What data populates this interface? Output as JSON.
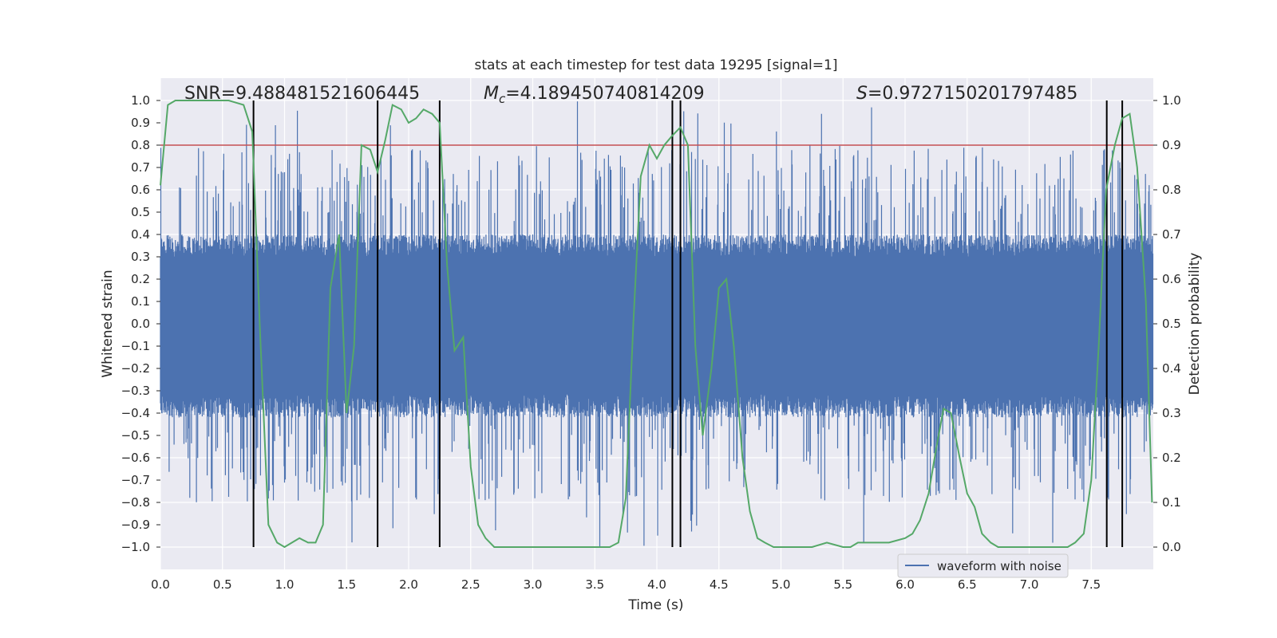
{
  "chart_data": {
    "type": "line",
    "title": "stats at each timestep for test data 19295 [signal=1]",
    "xlabel": "Time (s)",
    "ylabel": "Whitened strain",
    "y2label": "Detection probability",
    "xlim": [
      0.0,
      8.0
    ],
    "ylim": [
      -1.1,
      1.1
    ],
    "y2lim": [
      -0.05,
      1.05
    ],
    "xticks": [
      "0.0",
      "0.5",
      "1.0",
      "1.5",
      "2.0",
      "2.5",
      "3.0",
      "3.5",
      "4.0",
      "4.5",
      "5.0",
      "5.5",
      "6.0",
      "6.5",
      "7.0",
      "7.5"
    ],
    "yticks": [
      "1.0",
      "0.9",
      "0.8",
      "0.7",
      "0.6",
      "0.5",
      "0.4",
      "0.3",
      "0.2",
      "0.1",
      "0.0",
      "−0.1",
      "−0.2",
      "−0.3",
      "−0.4",
      "−0.5",
      "−0.6",
      "−0.7",
      "−0.8",
      "−0.9",
      "−1.0"
    ],
    "y2ticks": [
      "1.0",
      "0.9",
      "0.8",
      "0.7",
      "0.6",
      "0.5",
      "0.4",
      "0.3",
      "0.2",
      "0.1",
      "0.0"
    ],
    "annotations": {
      "snr": "SNR=9.488481521606445",
      "mc_symbol": "M",
      "mc_sub": "c",
      "mc_value": "=4.189450740814209",
      "s_symbol": "S",
      "s_value": "=0.9727150201797485"
    },
    "threshold": {
      "value": 0.8,
      "color": "#c44e52"
    },
    "event_lines": [
      0.75,
      1.75,
      2.25,
      4.125,
      4.19,
      7.625,
      7.75
    ],
    "series": [
      {
        "name": "waveform with noise",
        "color": "#4c72b0",
        "description": "noisy whitened strain, mostly within ±0.4, spikes to about ±1.0",
        "envelope": [
          0.4,
          0.42
        ]
      },
      {
        "name": "detection probability",
        "color": "#55a868",
        "axis": "right",
        "x": [
          0.0,
          0.06,
          0.12,
          0.25,
          0.4,
          0.55,
          0.67,
          0.74,
          0.8,
          0.87,
          0.94,
          1.0,
          1.06,
          1.12,
          1.19,
          1.25,
          1.31,
          1.37,
          1.44,
          1.5,
          1.56,
          1.62,
          1.69,
          1.75,
          1.81,
          1.87,
          1.94,
          2.0,
          2.06,
          2.12,
          2.19,
          2.25,
          2.31,
          2.37,
          2.44,
          2.5,
          2.56,
          2.62,
          2.69,
          2.75,
          2.81,
          2.87,
          3.0,
          3.12,
          3.25,
          3.4,
          3.56,
          3.62,
          3.69,
          3.75,
          3.81,
          3.87,
          3.94,
          4.0,
          4.06,
          4.12,
          4.19,
          4.25,
          4.31,
          4.37,
          4.44,
          4.5,
          4.56,
          4.62,
          4.69,
          4.75,
          4.81,
          4.87,
          4.94,
          5.0,
          5.12,
          5.25,
          5.37,
          5.5,
          5.56,
          5.62,
          5.75,
          5.87,
          6.0,
          6.06,
          6.12,
          6.19,
          6.25,
          6.31,
          6.37,
          6.44,
          6.5,
          6.56,
          6.62,
          6.69,
          6.75,
          6.87,
          7.0,
          7.12,
          7.25,
          7.31,
          7.37,
          7.44,
          7.5,
          7.56,
          7.62,
          7.69,
          7.75,
          7.81,
          7.87,
          7.94,
          7.99
        ],
        "values": [
          0.81,
          0.99,
          1.0,
          1.0,
          1.0,
          1.0,
          0.99,
          0.93,
          0.5,
          0.05,
          0.01,
          0.0,
          0.01,
          0.02,
          0.01,
          0.01,
          0.05,
          0.58,
          0.7,
          0.3,
          0.45,
          0.9,
          0.89,
          0.84,
          0.91,
          0.99,
          0.98,
          0.95,
          0.96,
          0.98,
          0.97,
          0.95,
          0.63,
          0.44,
          0.47,
          0.18,
          0.05,
          0.02,
          0.0,
          0.0,
          0.0,
          0.0,
          0.0,
          0.0,
          0.0,
          0.0,
          0.0,
          0.0,
          0.01,
          0.11,
          0.5,
          0.83,
          0.9,
          0.87,
          0.9,
          0.92,
          0.94,
          0.9,
          0.45,
          0.25,
          0.4,
          0.58,
          0.6,
          0.45,
          0.2,
          0.08,
          0.02,
          0.01,
          0.0,
          0.0,
          0.0,
          0.0,
          0.01,
          0.0,
          0.0,
          0.01,
          0.01,
          0.01,
          0.02,
          0.03,
          0.06,
          0.12,
          0.22,
          0.31,
          0.3,
          0.2,
          0.12,
          0.09,
          0.03,
          0.01,
          0.0,
          0.0,
          0.0,
          0.0,
          0.0,
          0.0,
          0.01,
          0.03,
          0.15,
          0.45,
          0.8,
          0.9,
          0.96,
          0.97,
          0.85,
          0.55,
          0.1
        ]
      }
    ],
    "legend": {
      "label": "waveform with noise",
      "placement": "bottom-right"
    }
  }
}
